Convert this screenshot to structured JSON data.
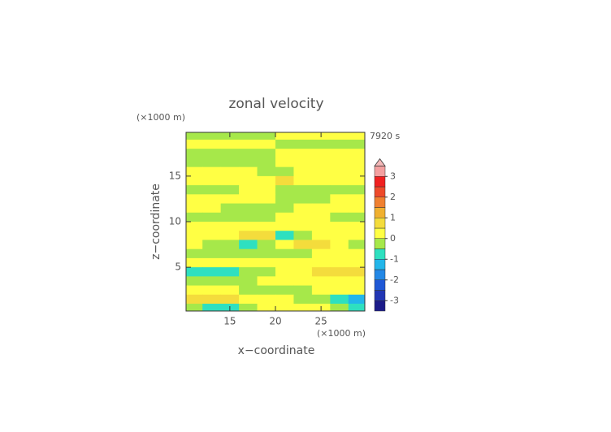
{
  "chart_data": {
    "type": "contour",
    "title": "zonal velocity",
    "y_unit": "(×1000 m)",
    "x_unit": "(×1000 m)",
    "time_label": "7920 s",
    "xlabel": "x−coordinate",
    "ylabel": "z−coordinate",
    "xlim": [
      10.2,
      29.8
    ],
    "ylim": [
      0.2,
      19.8
    ],
    "xticks": [
      15,
      20,
      25
    ],
    "yticks": [
      5,
      10,
      15
    ],
    "x": [
      11,
      13,
      15,
      17,
      19,
      21,
      23,
      25,
      27,
      29
    ],
    "y": [
      19.5,
      18.5,
      17.5,
      16.5,
      15.5,
      14.5,
      13.5,
      12.5,
      11.5,
      10.5,
      9.5,
      8.5,
      7.5,
      6.5,
      5.5,
      4.5,
      3.5,
      2.5,
      1.5,
      0.5
    ],
    "values": [
      [
        -0.2,
        -0.2,
        -0.2,
        -0.2,
        -0.2,
        0.2,
        0.2,
        0.2,
        0.2,
        0.2
      ],
      [
        0.2,
        0.2,
        0.2,
        0.2,
        0.2,
        -0.2,
        -0.2,
        -0.2,
        -0.2,
        -0.2
      ],
      [
        -0.2,
        -0.2,
        -0.2,
        -0.2,
        -0.2,
        0.2,
        0.2,
        0.2,
        0.2,
        0.2
      ],
      [
        -0.2,
        -0.2,
        -0.2,
        -0.2,
        -0.2,
        0.2,
        0.2,
        0.2,
        0.2,
        0.2
      ],
      [
        0.2,
        0.2,
        0.2,
        0.2,
        -0.2,
        -0.2,
        0.2,
        0.2,
        0.2,
        0.2
      ],
      [
        0.2,
        0.2,
        0.2,
        0.2,
        0.2,
        0.6,
        0.2,
        0.2,
        0.2,
        0.2
      ],
      [
        -0.2,
        -0.2,
        -0.2,
        0.2,
        0.2,
        -0.2,
        -0.2,
        -0.2,
        -0.2,
        -0.2
      ],
      [
        0.2,
        0.2,
        0.2,
        0.2,
        0.2,
        -0.2,
        -0.2,
        -0.2,
        0.2,
        0.2
      ],
      [
        0.2,
        0.2,
        -0.2,
        -0.2,
        -0.2,
        -0.2,
        0.2,
        0.2,
        0.2,
        0.2
      ],
      [
        -0.2,
        -0.2,
        -0.2,
        -0.2,
        -0.2,
        0.2,
        0.2,
        0.2,
        -0.2,
        -0.2
      ],
      [
        0.2,
        0.2,
        0.2,
        0.2,
        0.2,
        0.2,
        0.2,
        0.2,
        0.2,
        0.2
      ],
      [
        0.2,
        0.2,
        0.2,
        0.7,
        0.7,
        -0.7,
        -0.2,
        0.2,
        0.2,
        0.2
      ],
      [
        0.2,
        -0.2,
        -0.2,
        -0.7,
        -0.2,
        0.2,
        0.7,
        0.7,
        0.2,
        -0.2
      ],
      [
        -0.2,
        -0.2,
        -0.2,
        -0.2,
        -0.2,
        -0.2,
        -0.2,
        0.2,
        0.2,
        0.2
      ],
      [
        0.2,
        0.2,
        0.2,
        0.2,
        0.2,
        0.2,
        0.2,
        0.2,
        0.2,
        0.2
      ],
      [
        -0.7,
        -0.7,
        -0.7,
        -0.2,
        -0.2,
        0.2,
        0.2,
        0.7,
        0.7,
        0.7
      ],
      [
        -0.2,
        -0.2,
        -0.2,
        -0.2,
        0.2,
        0.2,
        0.2,
        0.2,
        0.2,
        0.2
      ],
      [
        0.2,
        0.2,
        0.2,
        -0.2,
        -0.2,
        -0.2,
        -0.2,
        0.2,
        0.2,
        0.2
      ],
      [
        0.7,
        0.7,
        0.7,
        0.2,
        0.2,
        0.2,
        -0.2,
        -0.2,
        -0.7,
        -1.2
      ],
      [
        -0.2,
        -0.7,
        -0.7,
        -0.2,
        0.2,
        0.2,
        0.2,
        0.2,
        -0.2,
        -0.7
      ]
    ],
    "colorbar": {
      "levels": [
        -3.5,
        -3,
        -2.5,
        -2,
        -1.5,
        -1,
        -0.5,
        0,
        0.5,
        1,
        1.5,
        2,
        2.5,
        3,
        3.5
      ],
      "colors": [
        "#1c1c8a",
        "#2236b4",
        "#1f58d6",
        "#2388e6",
        "#22b6ea",
        "#2ee0c0",
        "#a6e84a",
        "#ffff44",
        "#f4dc3c",
        "#f0b030",
        "#f08030",
        "#ee4a2a",
        "#f02020",
        "#f4a0a0"
      ],
      "extend_color": "#f4b8b8",
      "ticks": [
        -3,
        -2,
        -1,
        0,
        1,
        2,
        3
      ]
    }
  }
}
